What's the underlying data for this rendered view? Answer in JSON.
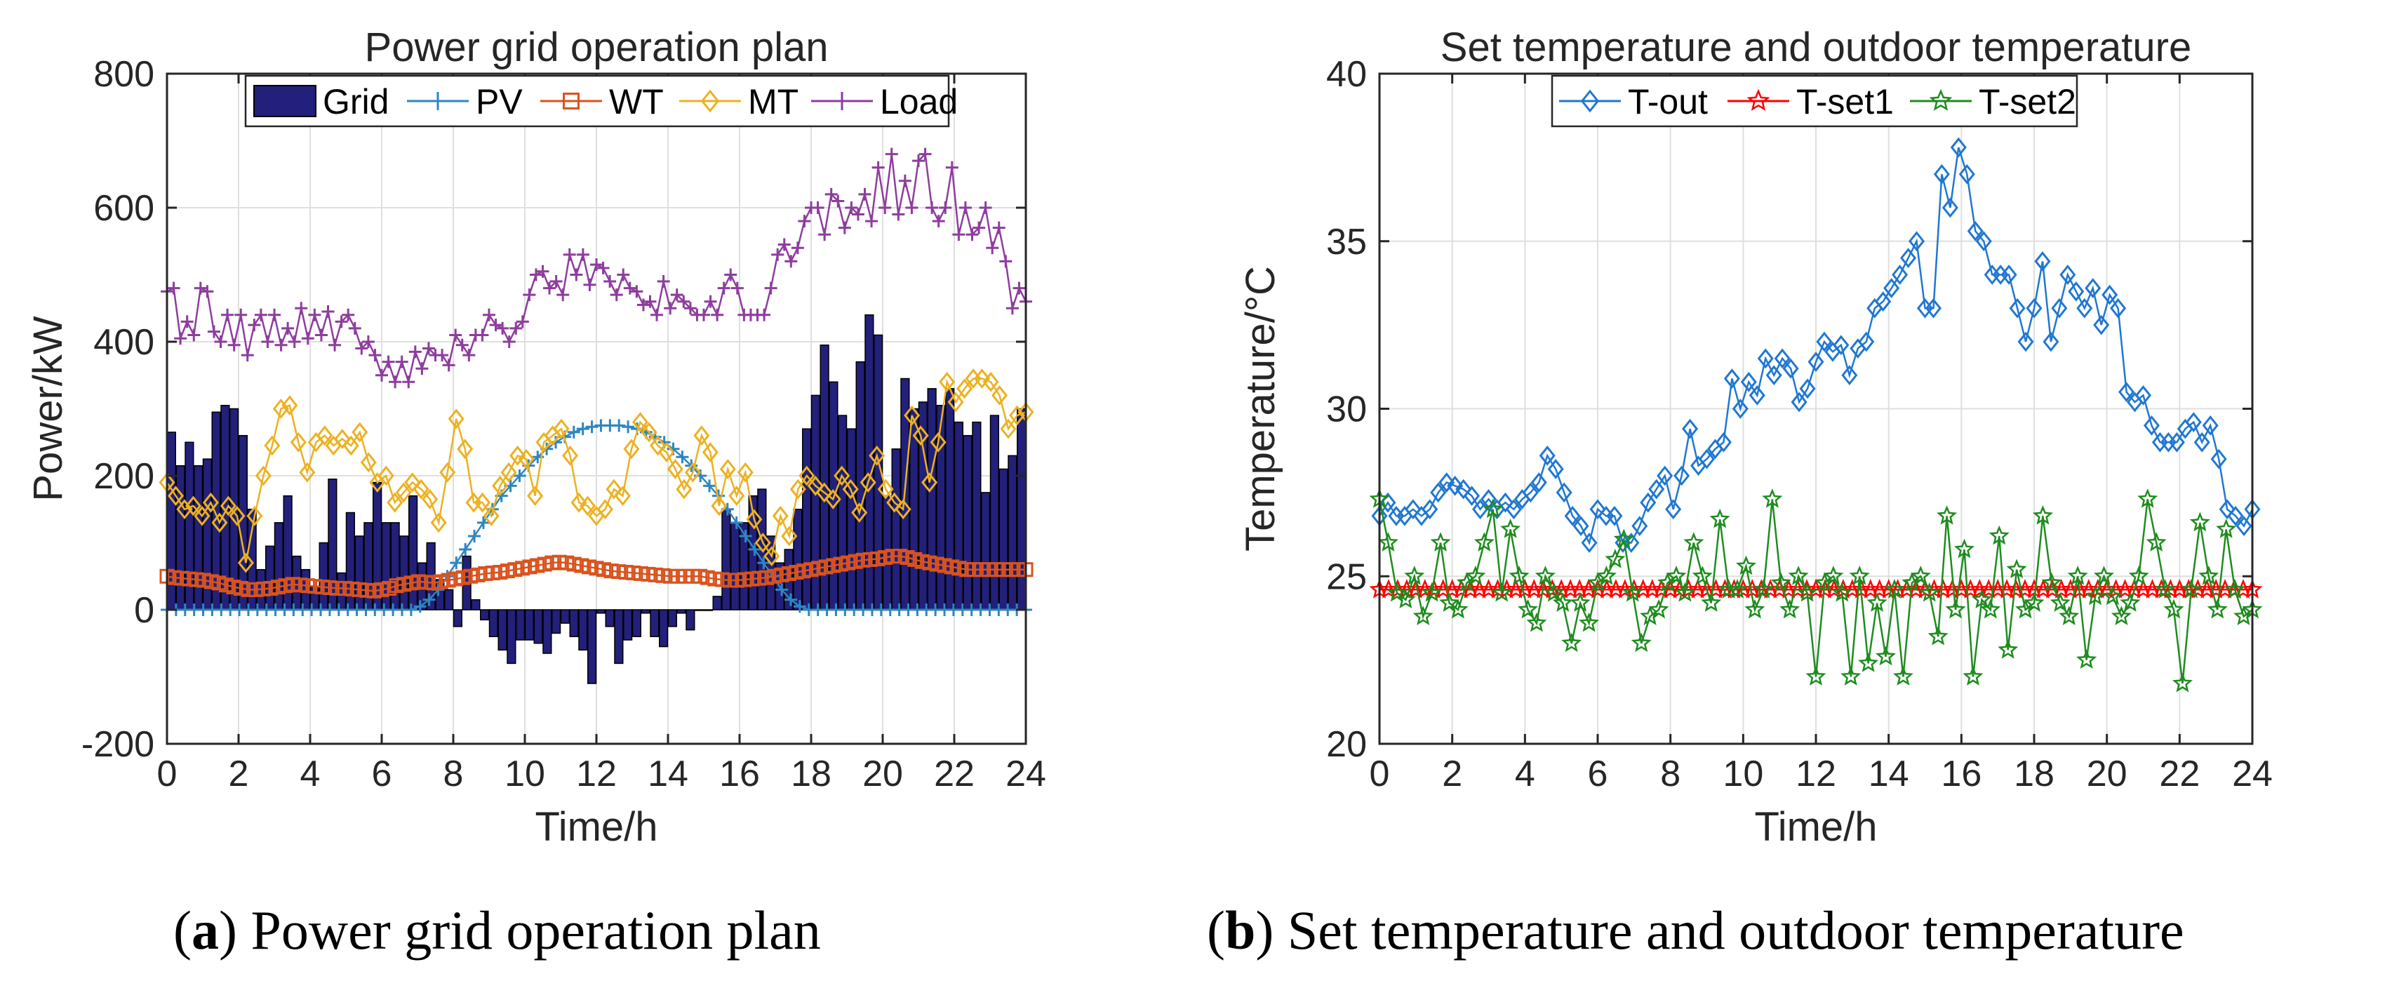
{
  "colors": {
    "grid": "#22207A",
    "pv": "#2E86C1",
    "wt": "#D9531E",
    "mt": "#EDB120",
    "load": "#8E3C9E",
    "tout": "#1F77D2",
    "tset1": "#FF0000",
    "tset2": "#1E8C1E"
  },
  "captions": {
    "a": {
      "label": "a",
      "text": "Power grid operation plan"
    },
    "b": {
      "label": "b",
      "text": "Set temperature and outdoor temperature"
    }
  },
  "chart_data": [
    {
      "type": "bar+line",
      "title": "Power grid operation plan",
      "xlabel": "Time/h",
      "ylabel": "Power/kW",
      "xlim": [
        0,
        24
      ],
      "ylim": [
        -200,
        800
      ],
      "xticks": [
        "0",
        "2",
        "4",
        "6",
        "8",
        "10",
        "12",
        "14",
        "16",
        "18",
        "20",
        "22",
        "24"
      ],
      "yticks": [
        "-200",
        "0",
        "200",
        "400",
        "600",
        "800"
      ],
      "grid": true,
      "legend_position": "top",
      "x_step_h": 0.25,
      "series": [
        {
          "name": "Grid",
          "kind": "bar",
          "color": "grid",
          "values": [
            265,
            215,
            250,
            215,
            225,
            295,
            305,
            300,
            260,
            150,
            60,
            95,
            130,
            170,
            80,
            60,
            35,
            100,
            195,
            55,
            145,
            110,
            130,
            190,
            130,
            130,
            110,
            170,
            70,
            100,
            45,
            30,
            -25,
            80,
            15,
            -15,
            -40,
            -60,
            -80,
            -45,
            -45,
            -50,
            -65,
            -35,
            -20,
            -40,
            -60,
            -110,
            -5,
            -25,
            -80,
            -45,
            -40,
            -5,
            -40,
            -55,
            -25,
            -5,
            -30,
            0,
            0,
            20,
            150,
            130,
            130,
            170,
            180,
            110,
            70,
            90,
            150,
            270,
            320,
            395,
            340,
            290,
            270,
            370,
            440,
            410,
            170,
            240,
            345,
            300,
            310,
            330,
            305,
            330,
            280,
            260,
            280,
            175,
            290,
            210,
            230,
            300,
            290,
            210,
            95
          ],
          "note": "Grid bars continue to the end of the horizon; only first part listed explicitly, rest inferred"
        },
        {
          "name": "PV",
          "kind": "line",
          "color": "pv",
          "marker": "plus",
          "values": [
            0,
            0,
            0,
            0,
            0,
            0,
            0,
            0,
            0,
            0,
            0,
            0,
            0,
            0,
            0,
            0,
            0,
            0,
            0,
            0,
            0,
            0,
            0,
            0,
            0,
            0,
            0,
            0,
            5,
            15,
            30,
            50,
            70,
            90,
            110,
            130,
            150,
            170,
            185,
            200,
            215,
            228,
            240,
            250,
            258,
            265,
            270,
            273,
            275,
            275,
            275,
            273,
            270,
            265,
            258,
            250,
            240,
            228,
            215,
            200,
            185,
            170,
            150,
            130,
            110,
            90,
            70,
            50,
            30,
            15,
            5,
            0,
            0,
            0,
            0,
            0,
            0,
            0,
            0,
            0,
            0,
            0,
            0,
            0,
            0,
            0,
            0,
            0,
            0,
            0,
            0,
            0,
            0,
            0,
            0,
            0
          ]
        },
        {
          "name": "WT",
          "kind": "line",
          "color": "wt",
          "marker": "square",
          "values": [
            50,
            48,
            47,
            46,
            45,
            44,
            42,
            40,
            37,
            34,
            32,
            30,
            30,
            31,
            32,
            34,
            36,
            38,
            37,
            36,
            35,
            34,
            33,
            32,
            32,
            31,
            30,
            29,
            28,
            30,
            32,
            36,
            38,
            40,
            42,
            41,
            40,
            42,
            44,
            46,
            48,
            50,
            52,
            54,
            55,
            56,
            58,
            60,
            62,
            64,
            66,
            68,
            70,
            71,
            70,
            68,
            66,
            64,
            62,
            60,
            58,
            57,
            56,
            55,
            54,
            53,
            52,
            51,
            50,
            50,
            50,
            50,
            50,
            48,
            46,
            45,
            44,
            44,
            45,
            46,
            47,
            48,
            50,
            52,
            54,
            56,
            58,
            60,
            62,
            64,
            66,
            68,
            70,
            72,
            74,
            75,
            76,
            78,
            80,
            80,
            78,
            75,
            72,
            70,
            68,
            66,
            64,
            62,
            60,
            60,
            60,
            60,
            60,
            60,
            60,
            60,
            60
          ]
        },
        {
          "name": "MT",
          "kind": "line",
          "color": "mt",
          "marker": "diamond",
          "values": [
            190,
            170,
            150,
            155,
            140,
            160,
            130,
            155,
            140,
            70,
            140,
            200,
            245,
            300,
            305,
            250,
            205,
            250,
            260,
            245,
            255,
            245,
            265,
            220,
            190,
            200,
            160,
            175,
            190,
            180,
            165,
            130,
            205,
            285,
            240,
            160,
            160,
            140,
            185,
            205,
            230,
            225,
            170,
            250,
            260,
            270,
            230,
            160,
            155,
            140,
            150,
            180,
            170,
            240,
            280,
            265,
            245,
            235,
            210,
            180,
            205,
            260,
            235,
            155,
            210,
            170,
            205,
            135,
            100,
            80,
            140,
            110,
            180,
            200,
            185,
            175,
            165,
            200,
            180,
            145,
            190,
            230,
            180,
            160,
            150,
            290,
            260,
            190,
            250,
            340,
            310,
            330,
            345,
            345,
            340,
            320,
            270,
            290,
            295
          ]
        },
        {
          "name": "Load",
          "kind": "line",
          "color": "load",
          "marker": "plus",
          "values": [
            475,
            480,
            405,
            430,
            410,
            480,
            475,
            415,
            400,
            440,
            395,
            440,
            380,
            425,
            440,
            400,
            440,
            395,
            420,
            400,
            450,
            405,
            440,
            410,
            445,
            395,
            430,
            440,
            420,
            390,
            400,
            380,
            350,
            370,
            340,
            370,
            340,
            385,
            360,
            390,
            380,
            380,
            365,
            410,
            395,
            380,
            410,
            410,
            440,
            425,
            420,
            400,
            420,
            430,
            470,
            500,
            505,
            480,
            490,
            470,
            530,
            500,
            530,
            485,
            515,
            510,
            490,
            470,
            500,
            480,
            475,
            455,
            460,
            440,
            490,
            450,
            470,
            460,
            450,
            440,
            440,
            460,
            440,
            480,
            500,
            480,
            440,
            440,
            440,
            440,
            480,
            530,
            545,
            520,
            540,
            580,
            600,
            600,
            560,
            620,
            610,
            570,
            600,
            590,
            620,
            580,
            660,
            600,
            680,
            590,
            640,
            600,
            670,
            680,
            600,
            580,
            600,
            660,
            560,
            600,
            560,
            570,
            600,
            540,
            570,
            520,
            450,
            480,
            460
          ]
        }
      ]
    },
    {
      "type": "line",
      "title": "Set temperature and outdoor temperature",
      "xlabel": "Time/h",
      "ylabel": "Temperature/°C",
      "xlim": [
        0,
        24
      ],
      "ylim": [
        20,
        40
      ],
      "xticks": [
        "0",
        "2",
        "4",
        "6",
        "8",
        "10",
        "12",
        "14",
        "16",
        "18",
        "20",
        "22",
        "24"
      ],
      "yticks": [
        "20",
        "25",
        "30",
        "35",
        "40"
      ],
      "grid": true,
      "legend_position": "top",
      "x_step_h": 0.25,
      "series": [
        {
          "name": "T-out",
          "kind": "line",
          "color": "tout",
          "marker": "diamond",
          "values": [
            26.8,
            27.2,
            26.8,
            26.8,
            27.0,
            26.8,
            27.0,
            27.5,
            27.8,
            27.7,
            27.6,
            27.4,
            27.0,
            27.3,
            27.0,
            27.2,
            27.0,
            27.3,
            27.5,
            27.8,
            28.6,
            28.2,
            27.5,
            26.8,
            26.5,
            26.0,
            27.0,
            26.8,
            26.8,
            26.0,
            26.0,
            26.5,
            27.2,
            27.6,
            28.0,
            27.0,
            28.0,
            29.4,
            28.3,
            28.5,
            28.8,
            29.0,
            30.9,
            30.0,
            30.8,
            30.4,
            31.5,
            31.0,
            31.5,
            31.2,
            30.2,
            30.6,
            31.4,
            32.0,
            31.7,
            31.9,
            31.0,
            31.8,
            32.0,
            33.0,
            33.2,
            33.6,
            34.0,
            34.5,
            35.0,
            33.0,
            33.0,
            37.0,
            36.0,
            37.8,
            37.0,
            35.3,
            35.0,
            34.0,
            34.0,
            34.0,
            33.0,
            32.0,
            33.0,
            34.4,
            32.0,
            33.0,
            34.0,
            33.5,
            33.0,
            33.6,
            32.5,
            33.4,
            33.0,
            30.5,
            30.2,
            30.4,
            29.5,
            29.0,
            29.0,
            29.0,
            29.4,
            29.6,
            29.0,
            29.5,
            28.5,
            27.0,
            26.8,
            26.5,
            27.0
          ]
        },
        {
          "name": "T-set1",
          "kind": "line",
          "color": "tset1",
          "marker": "star",
          "constant": 24.6
        },
        {
          "name": "T-set2",
          "kind": "line",
          "color": "tset2",
          "marker": "star",
          "values": [
            27.3,
            26.0,
            24.5,
            24.3,
            25.0,
            23.8,
            24.5,
            26.0,
            24.2,
            24.0,
            24.8,
            25.0,
            26.0,
            27.0,
            24.5,
            26.4,
            25.0,
            24.0,
            23.6,
            25.0,
            24.5,
            24.2,
            23.0,
            24.2,
            23.6,
            24.8,
            25.0,
            25.5,
            26.1,
            24.5,
            23.0,
            23.8,
            24.0,
            24.8,
            25.0,
            24.5,
            26.0,
            25.0,
            24.2,
            26.7,
            24.6,
            24.6,
            25.3,
            24.0,
            24.6,
            27.3,
            24.8,
            24.0,
            25.0,
            24.5,
            22.0,
            24.8,
            25.0,
            24.5,
            22.0,
            25.0,
            22.4,
            24.2,
            22.6,
            24.6,
            22.0,
            24.8,
            25.0,
            24.5,
            23.2,
            26.8,
            24.0,
            25.8,
            22.0,
            24.3,
            24.0,
            26.2,
            22.8,
            25.2,
            24.0,
            24.2,
            26.8,
            24.8,
            24.2,
            23.8,
            25.0,
            22.5,
            24.4,
            25.0,
            24.4,
            23.8,
            24.2,
            25.0,
            27.3,
            26.0,
            24.6,
            24.0,
            21.8,
            24.6,
            26.6,
            25.0,
            24.0,
            26.4,
            24.6,
            23.8,
            24.0
          ]
        }
      ]
    }
  ]
}
